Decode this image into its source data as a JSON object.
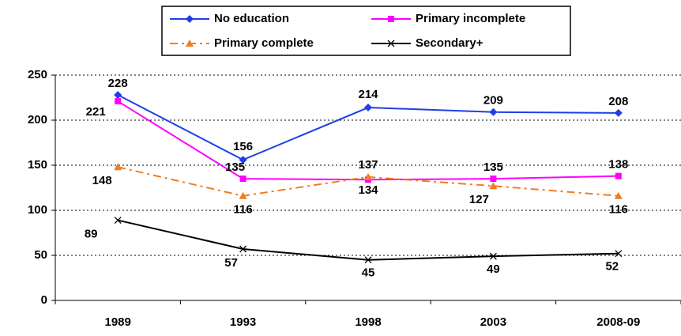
{
  "chart_data": {
    "type": "line",
    "categories": [
      "1989",
      "1993",
      "1998",
      "2003",
      "2008-09"
    ],
    "series": [
      {
        "name": "No education",
        "color": "#1f3fe6",
        "marker": "diamond",
        "dash": false,
        "values": [
          228,
          156,
          214,
          209,
          208
        ]
      },
      {
        "name": "Primary incomplete",
        "color": "#ff00ff",
        "marker": "square",
        "dash": false,
        "values": [
          221,
          135,
          134,
          135,
          138
        ]
      },
      {
        "name": "Primary complete",
        "color": "#f07d20",
        "marker": "triangle",
        "dash": true,
        "values": [
          148,
          116,
          137,
          127,
          116
        ]
      },
      {
        "name": "Secondary+",
        "color": "#000000",
        "marker": "x",
        "dash": false,
        "values": [
          89,
          57,
          45,
          49,
          52
        ]
      }
    ],
    "ylim": [
      0,
      250
    ],
    "yticks": [
      0,
      50,
      100,
      150,
      200,
      250
    ],
    "grid": true,
    "legend": "top"
  }
}
